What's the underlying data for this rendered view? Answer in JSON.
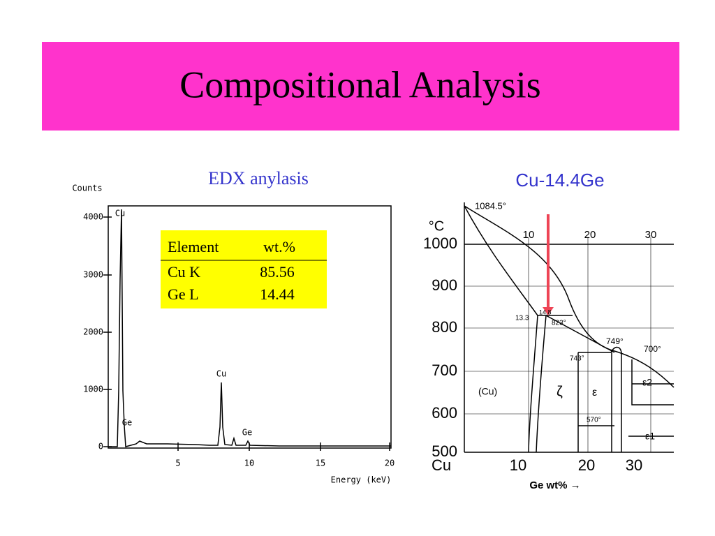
{
  "title": "Compositional Analysis",
  "edx": {
    "caption": "EDX anylasis",
    "y_label": "Counts",
    "x_label": "Energy (keV)",
    "yticks": [
      "0",
      "1000",
      "2000",
      "3000",
      "4000"
    ],
    "xticks": [
      "5",
      "10",
      "15",
      "20"
    ],
    "peak_labels": [
      "Cu",
      "Cu",
      "Ge",
      "Ge"
    ],
    "table": {
      "header": [
        "Element",
        "wt.%"
      ],
      "rows": [
        [
          "Cu K",
          "85.56"
        ],
        [
          "Ge L",
          "14.44"
        ]
      ]
    }
  },
  "phase": {
    "caption": "Cu-14.4Ge",
    "unit": "°C",
    "yticks": [
      "1000",
      "900",
      "800",
      "700",
      "600",
      "500"
    ],
    "top_ticks": [
      "10",
      "20",
      "30"
    ],
    "bottom_ticks": [
      "Cu",
      "10",
      "20",
      "30"
    ],
    "annotations": [
      "1084.5°",
      "13.3",
      "14.8",
      "823°",
      "749°",
      "700°",
      "743°",
      "570°",
      "(Cu)",
      "ζ",
      "ε",
      "ε2",
      "ε1"
    ],
    "x_label": "Ge wt% →"
  }
}
